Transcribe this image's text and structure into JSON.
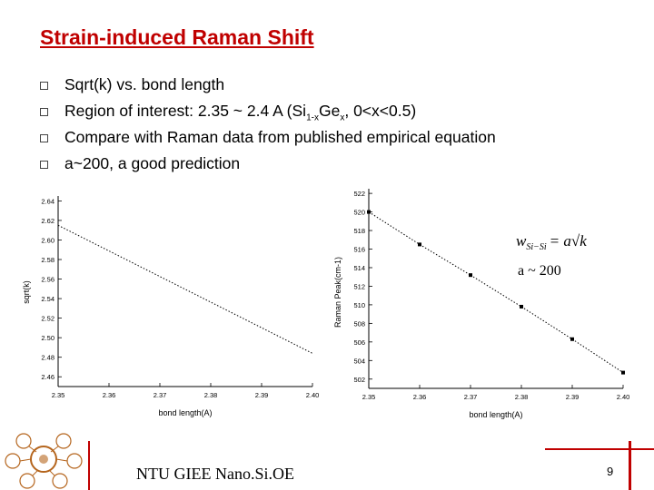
{
  "slide": {
    "title": "Strain-induced Raman Shift",
    "bullets": [
      {
        "text": "Sqrt(k) vs. bond length"
      },
      {
        "pre": "Region of interest: 2.35 ~ 2.4 A (Si",
        "sub1": "1-x",
        "mid": "Ge",
        "sub2": "x",
        "post": ", 0<x<0.5)"
      },
      {
        "text": "Compare with Raman data from published empirical equation"
      },
      {
        "text": "a~200, a good prediction"
      }
    ],
    "footer": "NTU GIEE Nano.Si.OE",
    "page_number": "9",
    "colors": {
      "title": "#c00000",
      "accent": "#c00000"
    }
  },
  "chart_data": [
    {
      "type": "line",
      "xlabel": "bond length(A)",
      "ylabel": "sqrt(k)",
      "x_ticks": [
        "2.35",
        "2.36",
        "2.37",
        "2.38",
        "2.39",
        "2.40"
      ],
      "y_ticks": [
        "2.46",
        "2.48",
        "2.50",
        "2.52",
        "2.54",
        "2.56",
        "2.58",
        "2.60",
        "2.62",
        "2.64"
      ],
      "xlim": [
        2.35,
        2.4
      ],
      "ylim": [
        2.45,
        2.645
      ],
      "series": [
        {
          "x": [
            2.35,
            2.4
          ],
          "y": [
            2.615,
            2.484
          ]
        }
      ]
    },
    {
      "type": "scatter",
      "xlabel": "bond length(A)",
      "ylabel": "Raman Peak(cm-1)",
      "x_ticks": [
        "2.35",
        "2.36",
        "2.37",
        "2.38",
        "2.39",
        "2.40"
      ],
      "y_ticks": [
        "502",
        "504",
        "506",
        "508",
        "510",
        "512",
        "514",
        "516",
        "518",
        "520",
        "522"
      ],
      "xlim": [
        2.35,
        2.4
      ],
      "ylim": [
        501,
        522.5
      ],
      "series": [
        {
          "x": [
            2.35,
            2.36,
            2.37,
            2.38,
            2.39,
            2.4
          ],
          "y": [
            520,
            516.5,
            513.2,
            509.8,
            506.3,
            502.7
          ]
        }
      ],
      "annotations": {
        "formula": "w_Si-Si = a√k",
        "formula_lhs": "w",
        "formula_sub": "Si−Si",
        "formula_rhs": "= a√k",
        "note": "a ~ 200"
      }
    }
  ]
}
